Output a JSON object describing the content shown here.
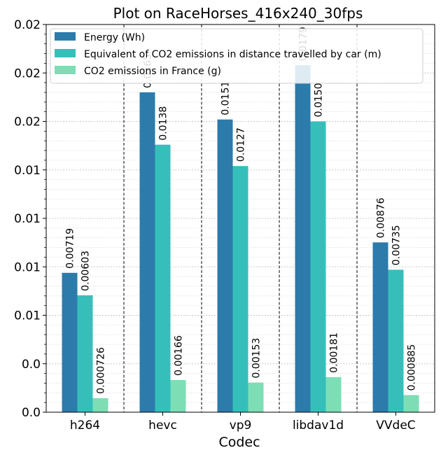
{
  "chart_data": {
    "type": "bar",
    "title": "Plot on RaceHorses_416x240_30fps",
    "xlabel": "Codec",
    "ylabel": "",
    "categories": [
      "h264",
      "hevc",
      "vp9",
      "libdav1d",
      "VVdeC"
    ],
    "series": [
      {
        "name": "Energy (Wh)",
        "color": "#2c7bab",
        "values": [
          0.00719,
          0.0165,
          0.0151,
          0.0179,
          0.00876
        ],
        "labels": [
          "0.00719",
          "0.0165",
          "0.0151",
          "0.0179",
          "0.00876"
        ]
      },
      {
        "name": "Equivalent of CO2 emissions in distance travelled by car (m)",
        "color": "#36bfba",
        "values": [
          0.00603,
          0.0138,
          0.0127,
          0.015,
          0.00735
        ],
        "labels": [
          "0.00603",
          "0.0138",
          "0.0127",
          "0.0150",
          "0.00735"
        ]
      },
      {
        "name": "CO2 emissions in France (g)",
        "color": "#7ddeb6",
        "values": [
          0.000726,
          0.00166,
          0.00153,
          0.00181,
          0.000885
        ],
        "labels": [
          "0.000726",
          "0.00166",
          "0.00153",
          "0.00181",
          "0.000885"
        ]
      }
    ],
    "ylim": [
      0,
      0.02
    ],
    "y_major_ticks": [
      0,
      0.0025,
      0.005,
      0.0075,
      0.01,
      0.0125,
      0.015,
      0.0175,
      0.02
    ],
    "y_tick_labels": [
      "0.0",
      "0.0",
      "0.01",
      "0.01",
      "0.01",
      "0.01",
      "0.02",
      "0.02",
      "0.02"
    ],
    "grid": true,
    "legend_position": "top-left"
  }
}
